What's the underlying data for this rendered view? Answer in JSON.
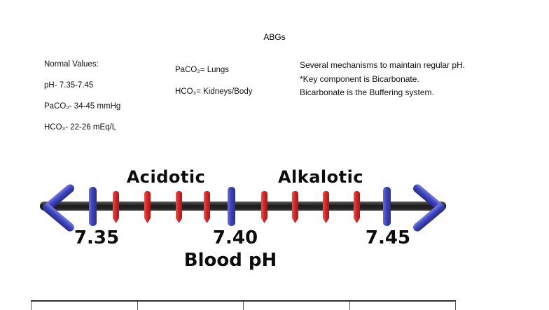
{
  "page": {
    "title": "ABGs"
  },
  "normal_values": {
    "heading": "Normal Values:",
    "lines": [
      "pH- 7.35-7.45",
      "PaCO₂- 34-45 mmHg",
      "HCO₃- 22-26 mEq/L"
    ]
  },
  "organ_map": {
    "lines": [
      "PaCO₂= Lungs",
      "HCO₃= Kidneys/Body"
    ]
  },
  "notes": {
    "lines": [
      "Several mechanisms to maintain regular pH.",
      "*Key component is Bicarbonate.",
      "Bicarbonate is the Buffering system."
    ]
  },
  "diagram": {
    "type": "scale",
    "axis_title": "Blood pH",
    "region_labels": [
      "Acidotic",
      "Alkalotic"
    ],
    "tick_labels": [
      "7.35",
      "7.40",
      "7.45"
    ],
    "major_tick_x": [
      72,
      270,
      492
    ],
    "minor_tick_x": [
      106,
      151,
      196,
      236,
      318,
      362,
      406,
      450
    ],
    "colors": {
      "major_tick": "#3a41bd",
      "minor_tick": "#da2424",
      "axis_bar": "#1d1d1d",
      "arrow": "#4046c2",
      "text": "#0c0c0c"
    }
  },
  "table": {
    "column_count": 4,
    "visible_rows": 0
  }
}
